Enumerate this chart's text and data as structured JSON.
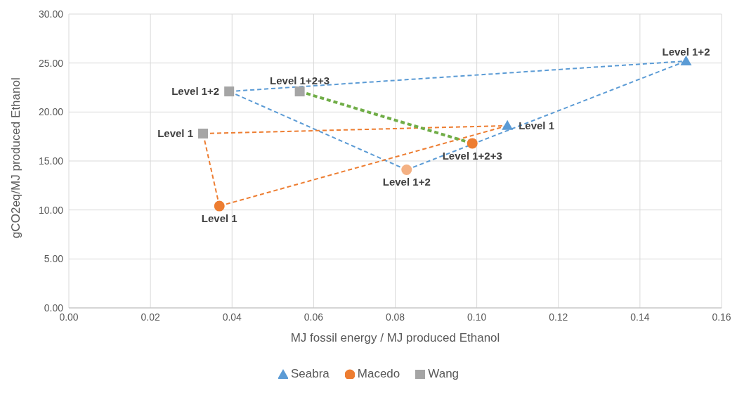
{
  "chart_data": {
    "type": "scatter",
    "xlabel": "MJ fossil energy / MJ produced Ethanol",
    "ylabel": "gCO2eq/MJ produced Ethanol",
    "xlim": [
      0,
      0.16
    ],
    "xticks": [
      {
        "value": 0,
        "label": "0.00"
      },
      {
        "value": 0.02,
        "label": "0.02"
      },
      {
        "value": 0.04,
        "label": "0.04"
      },
      {
        "value": 0.06,
        "label": "0.06"
      },
      {
        "value": 0.08,
        "label": "0.08"
      },
      {
        "value": 0.1,
        "label": "0.10"
      },
      {
        "value": 0.12,
        "label": "0.12"
      },
      {
        "value": 0.14,
        "label": "0.14"
      },
      {
        "value": 0.16,
        "label": "0.16"
      }
    ],
    "ylim": [
      0,
      30
    ],
    "yticks": [
      {
        "value": 0,
        "label": "0.00"
      },
      {
        "value": 5,
        "label": "5.00"
      },
      {
        "value": 10,
        "label": "10.00"
      },
      {
        "value": 15,
        "label": "15.00"
      },
      {
        "value": 20,
        "label": "20.00"
      },
      {
        "value": 25,
        "label": "25.00"
      },
      {
        "value": 30,
        "label": "30.00"
      }
    ],
    "grid": true,
    "legend": "bottom",
    "series": [
      {
        "type": "line",
        "color": "#5b9bd5",
        "line_style": "dashed",
        "x": [
          0.0393,
          0.1513
        ],
        "values": [
          22.1,
          25.2
        ]
      },
      {
        "type": "line",
        "color": "#5b9bd5",
        "line_style": "dashed",
        "x": [
          0.0828,
          0.1513
        ],
        "values": [
          14.1,
          25.2
        ]
      },
      {
        "type": "line",
        "color": "#5b9bd5",
        "line_style": "dashed",
        "x": [
          0.0393,
          0.0828
        ],
        "values": [
          22.1,
          14.1
        ]
      },
      {
        "type": "line",
        "color": "#ed7d31",
        "line_style": "dashed",
        "x": [
          0.0329,
          0.1075
        ],
        "values": [
          17.8,
          18.6
        ]
      },
      {
        "type": "line",
        "color": "#ed7d31",
        "line_style": "dashed",
        "x": [
          0.0369,
          0.1075
        ],
        "values": [
          10.4,
          18.6
        ]
      },
      {
        "type": "line",
        "color": "#ed7d31",
        "line_style": "dashed",
        "x": [
          0.0329,
          0.0369
        ],
        "values": [
          17.8,
          10.4
        ]
      },
      {
        "type": "line",
        "color": "#70ad47",
        "line_style": "dashed",
        "x": [
          0.0566,
          0.0989
        ],
        "values": [
          22.1,
          16.8
        ]
      },
      {
        "name": "Seabra",
        "marker": "triangle",
        "color": "#5b9bd5",
        "x": [
          0.1513,
          0.1075
        ],
        "values": [
          25.2,
          18.6
        ]
      },
      {
        "name": "Macedo",
        "marker": "circle",
        "color": "#ed7d31",
        "colors": [
          "#ed7d31",
          "#f4b183",
          "#ed7d31"
        ],
        "x": [
          0.0369,
          0.0828,
          0.0989
        ],
        "values": [
          10.4,
          14.1,
          16.8
        ]
      },
      {
        "name": "Wang",
        "marker": "square",
        "color": "#a5a5a5",
        "x": [
          0.0329,
          0.0393,
          0.0566
        ],
        "values": [
          17.8,
          22.1,
          22.1
        ]
      }
    ],
    "annotations": [
      {
        "text": "Level 1+2",
        "x": 0.1513,
        "y": 25.2
      },
      {
        "text": "Level 1",
        "x": 0.1075,
        "y": 18.6
      },
      {
        "text": "Level 1",
        "x": 0.0369,
        "y": 10.4
      },
      {
        "text": "Level 1+2",
        "x": 0.0828,
        "y": 14.1
      },
      {
        "text": "Level 1+2+3",
        "x": 0.0989,
        "y": 16.8
      },
      {
        "text": "Level 1",
        "x": 0.0329,
        "y": 17.8
      },
      {
        "text": "Level 1+2",
        "x": 0.0393,
        "y": 22.1
      },
      {
        "text": "Level 1+2+3",
        "x": 0.0566,
        "y": 22.1
      }
    ]
  }
}
